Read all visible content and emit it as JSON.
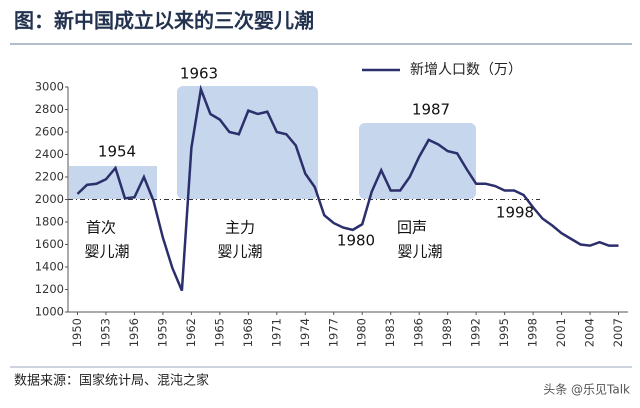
{
  "chart_data": {
    "type": "line",
    "title": "图：新中国成立以来的三次婴儿潮",
    "source": "数据来源：国家统计局、混沌之家",
    "watermark": "头条 @乐见Talk",
    "x": [
      1950,
      1951,
      1952,
      1953,
      1954,
      1955,
      1956,
      1957,
      1958,
      1959,
      1960,
      1961,
      1962,
      1963,
      1964,
      1965,
      1966,
      1967,
      1968,
      1969,
      1970,
      1971,
      1972,
      1973,
      1974,
      1975,
      1976,
      1977,
      1978,
      1979,
      1980,
      1981,
      1982,
      1983,
      1984,
      1985,
      1986,
      1987,
      1988,
      1989,
      1990,
      1991,
      1992,
      1993,
      1994,
      1995,
      1996,
      1997,
      1998,
      1999,
      2000,
      2001,
      2002,
      2003,
      2004,
      2005,
      2006,
      2007
    ],
    "series": [
      {
        "name": "新增人口数（万）",
        "color": "#2b2f6b",
        "values": [
          2050,
          2130,
          2140,
          2180,
          2280,
          2010,
          2020,
          2200,
          1990,
          1660,
          1390,
          1190,
          2460,
          2980,
          2760,
          2710,
          2600,
          2580,
          2790,
          2760,
          2780,
          2600,
          2580,
          2480,
          2230,
          2110,
          1860,
          1790,
          1750,
          1730,
          1780,
          2070,
          2260,
          2080,
          2080,
          2200,
          2380,
          2530,
          2490,
          2430,
          2410,
          2270,
          2140,
          2140,
          2120,
          2080,
          2080,
          2040,
          1930,
          1830,
          1770,
          1700,
          1650,
          1600,
          1590,
          1620,
          1590,
          1590
        ]
      }
    ],
    "xlim": [
      1949,
      2008
    ],
    "xticks": [
      1950,
      1953,
      1956,
      1959,
      1962,
      1965,
      1968,
      1971,
      1974,
      1977,
      1980,
      1983,
      1986,
      1989,
      1992,
      1995,
      1998,
      2001,
      2004,
      2007
    ],
    "ylim": [
      1000,
      3000
    ],
    "yticks": [
      1000,
      1200,
      1400,
      1600,
      1800,
      2000,
      2200,
      2400,
      2600,
      2800,
      3000
    ],
    "reference_line": 2000,
    "annotations": [
      "1954",
      "1963",
      "1980",
      "1987",
      "1998",
      "首次",
      "婴儿潮",
      "主力",
      "婴儿潮",
      "回声",
      "婴儿潮"
    ]
  }
}
